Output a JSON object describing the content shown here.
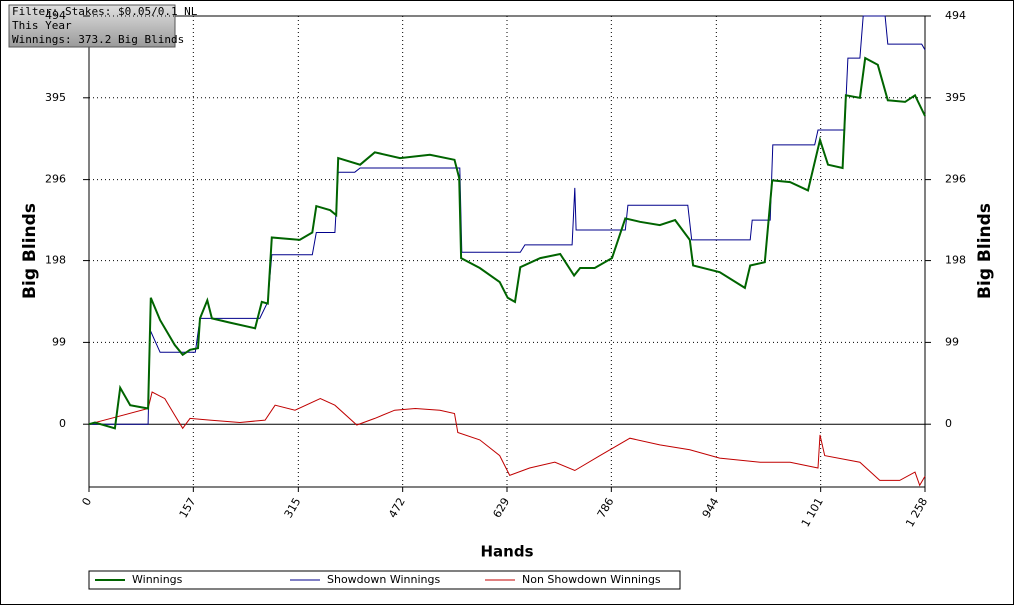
{
  "chart_data": {
    "type": "line",
    "info": [
      "Filter: Stakes: $0.05/0.1 NL",
      "This Year",
      "Winnings: 373.2 Big Blinds"
    ],
    "x_label": "Hands",
    "y_label": "Big Blinds",
    "xlim": [
      0,
      1258
    ],
    "ylim": [
      -76,
      494
    ],
    "xticks": [
      0,
      157,
      315,
      472,
      629,
      786,
      944,
      {
        "value": 1101,
        "label": "1 101"
      },
      {
        "value": 1258,
        "label": "1 258"
      }
    ],
    "yticks": [
      0,
      99,
      198,
      296,
      395,
      494
    ],
    "grid": true,
    "series": [
      {
        "name": "Winnings",
        "color": "#006400",
        "x": [
          0,
          9,
          39,
          47,
          62,
          89,
          93,
          107,
          129,
          141,
          152,
          164,
          167,
          178,
          185,
          212,
          250,
          260,
          269,
          275,
          317,
          336,
          342,
          363,
          372,
          375,
          408,
          430,
          468,
          513,
          550,
          557,
          560,
          588,
          618,
          630,
          641,
          649,
          679,
          709,
          730,
          739,
          761,
          787,
          807,
          829,
          859,
          882,
          904,
          909,
          949,
          987,
          995,
          1017,
          1028,
          1055,
          1082,
          1100,
          1112,
          1134,
          1139,
          1160,
          1168,
          1187,
          1202,
          1228,
          1243,
          1258
        ],
        "values": [
          0,
          2,
          -5,
          44,
          23,
          19,
          153,
          126,
          96,
          84,
          90,
          92,
          128,
          150,
          128,
          123,
          116,
          148,
          146,
          226,
          223,
          232,
          264,
          259,
          253,
          322,
          314,
          329,
          322,
          326,
          320,
          298,
          201,
          189,
          172,
          153,
          148,
          190,
          201,
          206,
          180,
          189,
          189,
          201,
          249,
          245,
          241,
          247,
          223,
          192,
          184,
          165,
          192,
          196,
          295,
          293,
          283,
          344,
          314,
          310,
          398,
          395,
          443,
          435,
          392,
          390,
          398,
          373
        ]
      },
      {
        "name": "Showdown Winnings",
        "color": "#00008b",
        "x": [
          0,
          89,
          92,
          107,
          160,
          167,
          257,
          269,
          275,
          336,
          342,
          370,
          375,
          400,
          408,
          558,
          561,
          649,
          656,
          727,
          731,
          733,
          807,
          811,
          901,
          907,
          995,
          998,
          1025,
          1029,
          1092,
          1097,
          1137,
          1142,
          1160,
          1165,
          1198,
          1202,
          1253,
          1258
        ],
        "values": [
          0,
          0,
          114,
          87,
          87,
          128,
          128,
          148,
          205,
          205,
          232,
          232,
          305,
          305,
          310,
          310,
          208,
          208,
          217,
          217,
          286,
          235,
          235,
          265,
          265,
          223,
          223,
          247,
          247,
          338,
          338,
          356,
          356,
          443,
          443,
          494,
          494,
          460,
          460,
          453
        ]
      },
      {
        "name": "Non Showdown Winnings",
        "color": "#c00000",
        "x": [
          0,
          89,
          95,
          114,
          129,
          141,
          152,
          182,
          227,
          265,
          280,
          310,
          348,
          370,
          403,
          430,
          460,
          491,
          528,
          550,
          555,
          588,
          618,
          633,
          663,
          701,
          731,
          769,
          814,
          859,
          904,
          949,
          1010,
          1055,
          1097,
          1100,
          1107,
          1160,
          1190,
          1220,
          1243,
          1250,
          1258
        ],
        "values": [
          0,
          19,
          39,
          31,
          11,
          -5,
          7,
          5,
          2,
          5,
          23,
          17,
          31,
          23,
          -1,
          7,
          17,
          19,
          17,
          13,
          -10,
          -19,
          -38,
          -62,
          -53,
          -46,
          -56,
          -38,
          -17,
          -25,
          -31,
          -41,
          -46,
          -46,
          -53,
          -13,
          -38,
          -46,
          -68,
          -68,
          -58,
          -74,
          -63
        ]
      }
    ]
  }
}
